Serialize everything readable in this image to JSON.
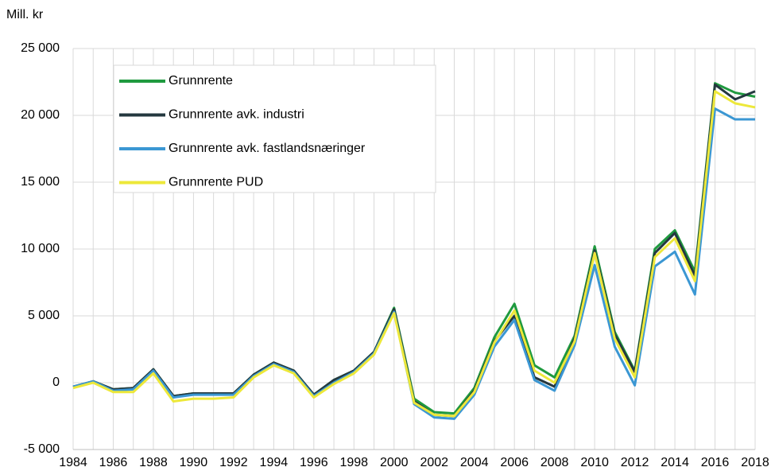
{
  "chart_data": {
    "type": "line",
    "y_axis_label": "Mill. kr",
    "categories": [
      "1984",
      null,
      "1986",
      null,
      "1988",
      null,
      "1990",
      null,
      "1992",
      null,
      "1994",
      null,
      "1996",
      null,
      "1998",
      null,
      "2000",
      null,
      "2002",
      null,
      "2004",
      null,
      "2006",
      null,
      "2008",
      null,
      "2010",
      null,
      "2012",
      null,
      "2014",
      null,
      "2016",
      null,
      "2018"
    ],
    "series": [
      {
        "name": "Grunnrente",
        "color": "#1f9a3f",
        "values": [
          -300,
          100,
          -500,
          -400,
          1000,
          -1000,
          -800,
          -800,
          -800,
          600,
          1500,
          900,
          -900,
          200,
          900,
          2300,
          5600,
          -1200,
          -2200,
          -2300,
          -400,
          3400,
          5900,
          1300,
          400,
          3500,
          10200,
          3800,
          900,
          10000,
          11400,
          8300,
          22400,
          21700,
          21400
        ]
      },
      {
        "name": "Grunnrente avk. industri",
        "color": "#24383f",
        "values": [
          -300,
          100,
          -500,
          -400,
          1000,
          -1000,
          -800,
          -800,
          -800,
          600,
          1500,
          900,
          -900,
          200,
          900,
          2300,
          5500,
          -1400,
          -2400,
          -2500,
          -600,
          3100,
          5000,
          400,
          -300,
          3300,
          9900,
          3600,
          800,
          9700,
          11200,
          8000,
          22300,
          21200,
          21800
        ]
      },
      {
        "name": "Grunnrente avk. fastlandsnæringer",
        "color": "#3b97d3",
        "values": [
          -300,
          100,
          -600,
          -500,
          900,
          -1100,
          -900,
          -900,
          -900,
          500,
          1400,
          800,
          -1000,
          0,
          800,
          2200,
          5300,
          -1600,
          -2600,
          -2700,
          -900,
          2700,
          4700,
          200,
          -600,
          2800,
          8800,
          2700,
          -200,
          8700,
          9800,
          6600,
          20500,
          19700,
          19700
        ]
      },
      {
        "name": "Grunnrente PUD",
        "color": "#ede83a",
        "values": [
          -400,
          0,
          -700,
          -700,
          700,
          -1400,
          -1200,
          -1200,
          -1100,
          400,
          1300,
          700,
          -1100,
          -100,
          700,
          2100,
          5200,
          -1500,
          -2400,
          -2500,
          -700,
          3000,
          5400,
          900,
          0,
          3100,
          9700,
          3300,
          400,
          9400,
          10800,
          7600,
          21800,
          20900,
          20600
        ]
      }
    ],
    "ylim": [
      -5000,
      25000
    ],
    "yticks": [
      {
        "value": -5000,
        "label": "-5 000"
      },
      0,
      {
        "value": 5000,
        "label": "5 000"
      },
      {
        "value": 10000,
        "label": "10 000"
      },
      {
        "value": 15000,
        "label": "15 000"
      },
      {
        "value": 20000,
        "label": "20 000"
      },
      {
        "value": 25000,
        "label": "25 000"
      }
    ],
    "grid": true,
    "legend": "top-left"
  }
}
